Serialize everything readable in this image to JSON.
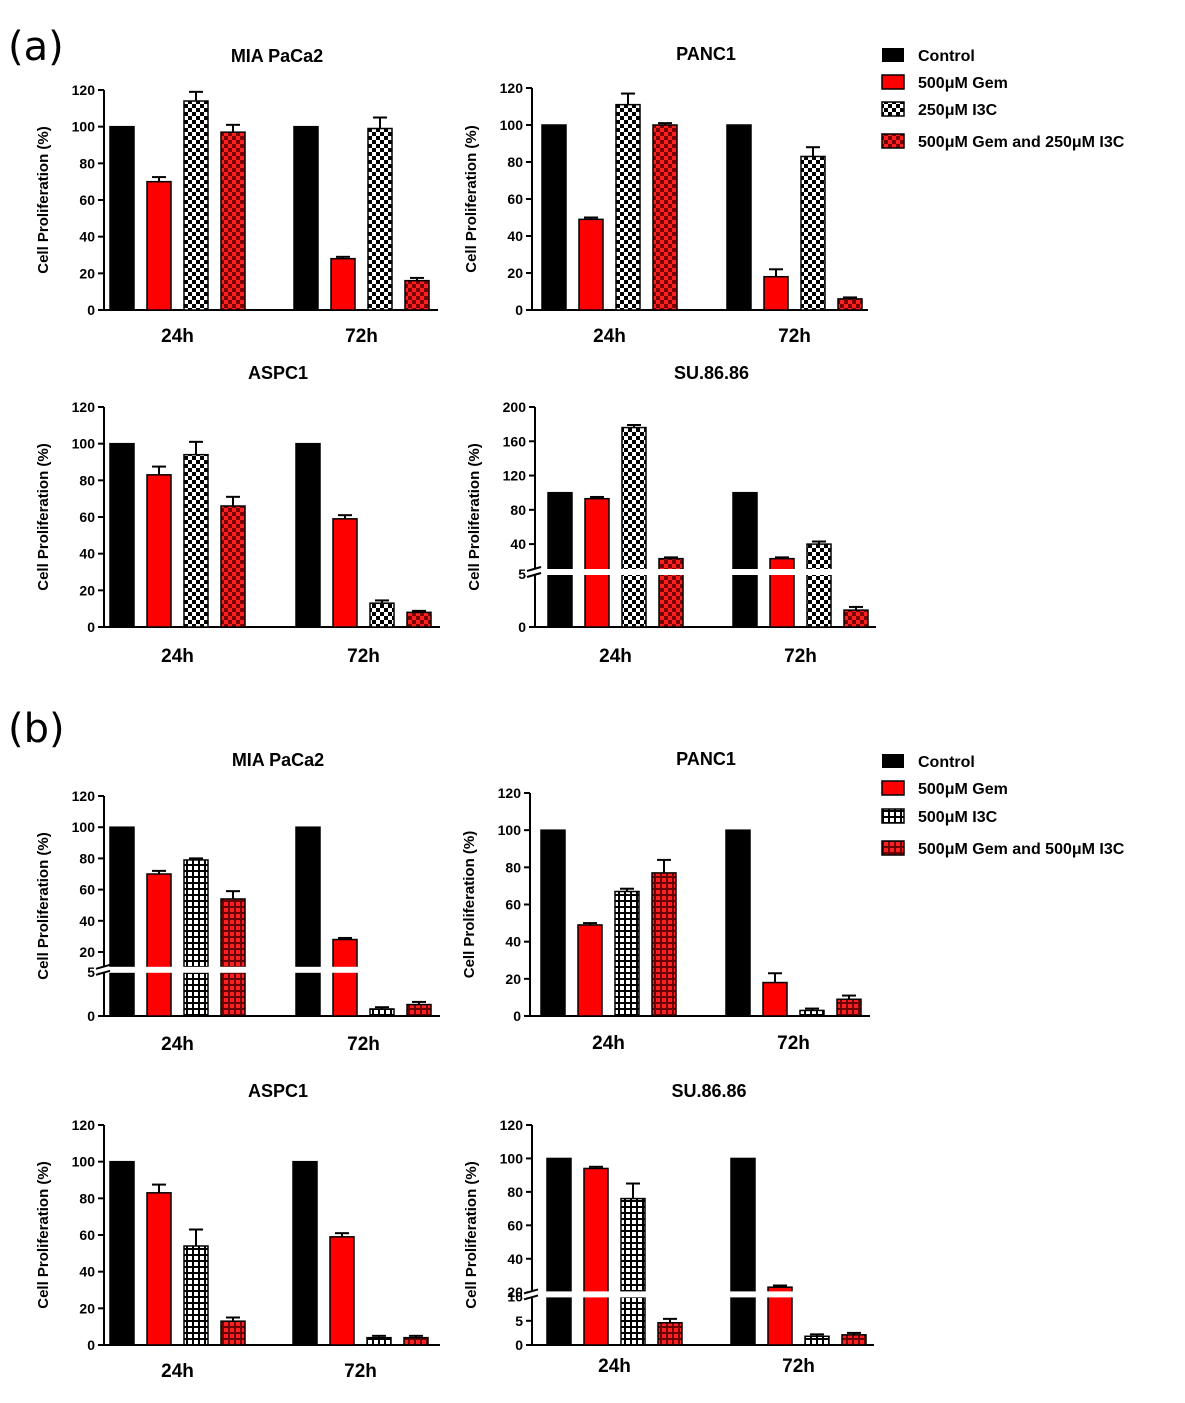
{
  "colors": {
    "control": "#000000",
    "gem": "#ff0000",
    "check_dark": "#000000",
    "check_light": "#ffffff",
    "combo_dark": "#8b0000",
    "combo_light": "#ff2020"
  },
  "panels": [
    {
      "label": "(a)",
      "legend": [
        "Control",
        "500μM Gem",
        "250μM I3C",
        "500μM Gem and 250μM I3C"
      ],
      "patterns": [
        "solid-black",
        "solid-red",
        "check-bw",
        "check-red"
      ]
    },
    {
      "label": "(b)",
      "legend": [
        "Control",
        "500μM Gem",
        "500μM I3C",
        "500μM Gem and 500μM I3C"
      ],
      "patterns": [
        "solid-black",
        "solid-red",
        "grid-bw",
        "grid-red"
      ]
    }
  ],
  "chart_data": [
    {
      "type": "bar",
      "panel": "(a)",
      "title": "MIA PaCa2",
      "ylabel": "Cell Proliferation (%)",
      "categories": [
        "24h",
        "72h"
      ],
      "ylim": [
        0,
        120
      ],
      "yticks": [
        "0",
        "20",
        "40",
        "60",
        "80",
        "100",
        "120"
      ],
      "series": [
        {
          "name": "Control",
          "values": [
            100,
            100
          ],
          "errors": [
            0,
            0
          ]
        },
        {
          "name": "500μM Gem",
          "values": [
            70,
            28
          ],
          "errors": [
            2.5,
            1
          ]
        },
        {
          "name": "250μM I3C",
          "values": [
            114,
            99
          ],
          "errors": [
            5,
            6
          ]
        },
        {
          "name": "500μM Gem and 250μM I3C",
          "values": [
            97,
            16
          ],
          "errors": [
            4,
            1.5
          ]
        }
      ]
    },
    {
      "type": "bar",
      "panel": "(a)",
      "title": "PANC1",
      "ylabel": "Cell Proliferation (%)",
      "categories": [
        "24h",
        "72h"
      ],
      "ylim": [
        0,
        120
      ],
      "yticks": [
        "0",
        "20",
        "40",
        "60",
        "80",
        "100",
        "120"
      ],
      "series": [
        {
          "name": "Control",
          "values": [
            100,
            100
          ],
          "errors": [
            0,
            0
          ]
        },
        {
          "name": "500μM Gem",
          "values": [
            49,
            18
          ],
          "errors": [
            1,
            4
          ]
        },
        {
          "name": "250μM I3C",
          "values": [
            111,
            83
          ],
          "errors": [
            6,
            5
          ]
        },
        {
          "name": "500μM Gem and 250μM I3C",
          "values": [
            100,
            6
          ],
          "errors": [
            1,
            0.8
          ]
        }
      ]
    },
    {
      "type": "bar",
      "panel": "(a)",
      "title": "ASPC1",
      "ylabel": "Cell Proliferation (%)",
      "categories": [
        "24h",
        "72h"
      ],
      "ylim": [
        0,
        120
      ],
      "yticks": [
        "0",
        "20",
        "40",
        "60",
        "80",
        "100",
        "120"
      ],
      "series": [
        {
          "name": "Control",
          "values": [
            100,
            100
          ],
          "errors": [
            0,
            0
          ]
        },
        {
          "name": "500μM Gem",
          "values": [
            83,
            59
          ],
          "errors": [
            4.5,
            2
          ]
        },
        {
          "name": "250μM I3C",
          "values": [
            94,
            13
          ],
          "errors": [
            7,
            1.5
          ]
        },
        {
          "name": "500μM Gem and 250μM I3C",
          "values": [
            66,
            8
          ],
          "errors": [
            5,
            0.8
          ]
        }
      ]
    },
    {
      "type": "bar",
      "panel": "(a)",
      "title": "SU.86.86",
      "ylabel": "Cell Proliferation (%)",
      "categories": [
        "24h",
        "72h"
      ],
      "ylim": [
        0,
        200
      ],
      "axis_break": [
        5,
        10
      ],
      "yticks": [
        "0",
        "5",
        "40",
        "80",
        "120",
        "160",
        "200"
      ],
      "series": [
        {
          "name": "Control",
          "values": [
            100,
            100
          ],
          "errors": [
            0,
            0
          ]
        },
        {
          "name": "500μM Gem",
          "values": [
            93,
            23
          ],
          "errors": [
            2,
            1.5
          ]
        },
        {
          "name": "250μM I3C",
          "values": [
            176,
            40
          ],
          "errors": [
            3,
            3
          ]
        },
        {
          "name": "500μM Gem and 250μM I3C",
          "values": [
            23,
            1.6
          ],
          "errors": [
            1.5,
            0.3
          ]
        }
      ]
    },
    {
      "type": "bar",
      "panel": "(b)",
      "title": "MIA PaCa2",
      "ylabel": "Cell Proliferation (%)",
      "categories": [
        "24h",
        "72h"
      ],
      "ylim": [
        0,
        120
      ],
      "axis_break": [
        5,
        10
      ],
      "yticks": [
        "0",
        "5",
        "20",
        "40",
        "60",
        "80",
        "100",
        "120"
      ],
      "series": [
        {
          "name": "Control",
          "values": [
            100,
            100
          ],
          "errors": [
            0,
            0
          ]
        },
        {
          "name": "500μM Gem",
          "values": [
            70,
            28
          ],
          "errors": [
            2,
            1
          ]
        },
        {
          "name": "500μM I3C",
          "values": [
            79,
            0.8
          ],
          "errors": [
            1,
            0.2
          ]
        },
        {
          "name": "500μM Gem and 500μM I3C",
          "values": [
            54,
            1.3
          ],
          "errors": [
            5,
            0.3
          ]
        }
      ]
    },
    {
      "type": "bar",
      "panel": "(b)",
      "title": "PANC1",
      "ylabel": "Cell Proliferation (%)",
      "categories": [
        "24h",
        "72h"
      ],
      "ylim": [
        0,
        120
      ],
      "yticks": [
        "0",
        "20",
        "40",
        "60",
        "80",
        "100",
        "120"
      ],
      "series": [
        {
          "name": "Control",
          "values": [
            100,
            100
          ],
          "errors": [
            0,
            0
          ]
        },
        {
          "name": "500μM Gem",
          "values": [
            49,
            18
          ],
          "errors": [
            1,
            5
          ]
        },
        {
          "name": "500μM I3C",
          "values": [
            67,
            3
          ],
          "errors": [
            1.5,
            1
          ]
        },
        {
          "name": "500μM Gem and 500μM I3C",
          "values": [
            77,
            9
          ],
          "errors": [
            7,
            2
          ]
        }
      ]
    },
    {
      "type": "bar",
      "panel": "(b)",
      "title": "ASPC1",
      "ylabel": "Cell Proliferation (%)",
      "categories": [
        "24h",
        "72h"
      ],
      "ylim": [
        0,
        120
      ],
      "yticks": [
        "0",
        "20",
        "40",
        "60",
        "80",
        "100",
        "120"
      ],
      "series": [
        {
          "name": "Control",
          "values": [
            100,
            100
          ],
          "errors": [
            0,
            0
          ]
        },
        {
          "name": "500μM Gem",
          "values": [
            83,
            59
          ],
          "errors": [
            4.5,
            2
          ]
        },
        {
          "name": "500μM I3C",
          "values": [
            54,
            4
          ],
          "errors": [
            9,
            1
          ]
        },
        {
          "name": "500μM Gem and 500μM I3C",
          "values": [
            13,
            4
          ],
          "errors": [
            2,
            1
          ]
        }
      ]
    },
    {
      "type": "bar",
      "panel": "(b)",
      "title": "SU.86.86",
      "ylabel": "Cell Proliferation (%)",
      "categories": [
        "24h",
        "72h"
      ],
      "ylim": [
        0,
        120
      ],
      "axis_break": [
        10,
        20
      ],
      "yticks": [
        "0",
        "5",
        "10",
        "20",
        "40",
        "60",
        "80",
        "100",
        "120"
      ],
      "series": [
        {
          "name": "Control",
          "values": [
            100,
            100
          ],
          "errors": [
            0,
            0
          ]
        },
        {
          "name": "500μM Gem",
          "values": [
            94,
            23
          ],
          "errors": [
            1,
            1
          ]
        },
        {
          "name": "500μM I3C",
          "values": [
            76,
            1.8
          ],
          "errors": [
            9,
            0.4
          ]
        },
        {
          "name": "500μM Gem and 500μM I3C",
          "values": [
            4.6,
            2.1
          ],
          "errors": [
            0.8,
            0.4
          ]
        }
      ]
    }
  ]
}
